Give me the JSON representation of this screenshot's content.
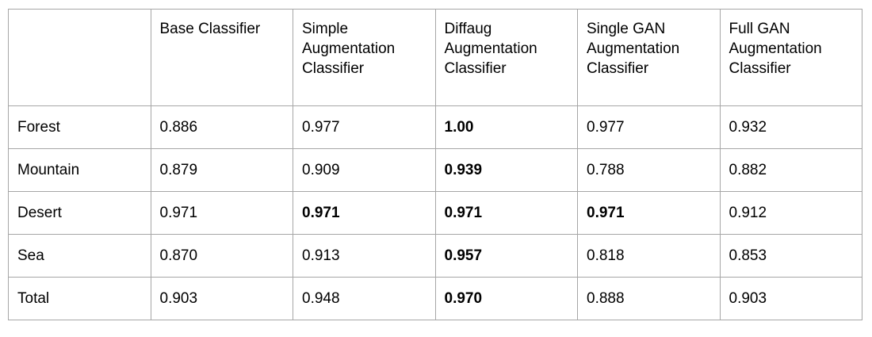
{
  "table": {
    "header": [
      "Base Classifier",
      "Simple Augmentation Classifier",
      "Diffaug Augmentation Classifier",
      "Single GAN Augmentation Classifier",
      "Full GAN Augmentation Classifier"
    ],
    "rows": [
      {
        "label": "Forest",
        "cells": [
          {
            "text": "0.886",
            "bold": false
          },
          {
            "text": "0.977",
            "bold": false
          },
          {
            "text": "1.00",
            "bold": true
          },
          {
            "text": "0.977",
            "bold": false
          },
          {
            "text": "0.932",
            "bold": false
          }
        ]
      },
      {
        "label": "Mountain",
        "cells": [
          {
            "text": "0.879",
            "bold": false
          },
          {
            "text": "0.909",
            "bold": false
          },
          {
            "text": "0.939",
            "bold": true
          },
          {
            "text": "0.788",
            "bold": false
          },
          {
            "text": "0.882",
            "bold": false
          }
        ]
      },
      {
        "label": "Desert",
        "cells": [
          {
            "text": "0.971",
            "bold": false
          },
          {
            "text": "0.971",
            "bold": true
          },
          {
            "text": "0.971",
            "bold": true
          },
          {
            "text": "0.971",
            "bold": true
          },
          {
            "text": "0.912",
            "bold": false
          }
        ]
      },
      {
        "label": "Sea",
        "cells": [
          {
            "text": "0.870",
            "bold": false
          },
          {
            "text": "0.913",
            "bold": false
          },
          {
            "text": "0.957",
            "bold": true
          },
          {
            "text": "0.818",
            "bold": false
          },
          {
            "text": "0.853",
            "bold": false
          }
        ]
      },
      {
        "label": "Total",
        "cells": [
          {
            "text": "0.903",
            "bold": false
          },
          {
            "text": "0.948",
            "bold": false
          },
          {
            "text": "0.970",
            "bold": true
          },
          {
            "text": "0.888",
            "bold": false
          },
          {
            "text": "0.903",
            "bold": false
          }
        ]
      }
    ]
  }
}
